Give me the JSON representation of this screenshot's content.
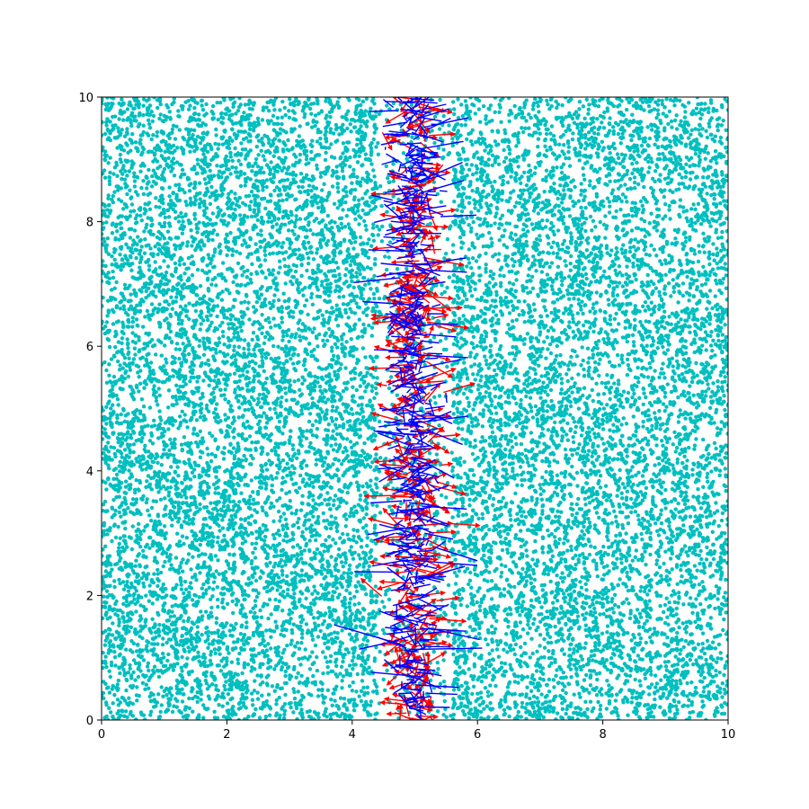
{
  "chart_data": {
    "type": "scatter",
    "title": "",
    "xlabel": "",
    "ylabel": "",
    "xlim": [
      0,
      10
    ],
    "ylim": [
      0,
      10
    ],
    "grid": false,
    "x_ticks": [
      "0",
      "2",
      "4",
      "6",
      "8",
      "10"
    ],
    "y_ticks": [
      "0",
      "2",
      "4",
      "6",
      "8",
      "10"
    ],
    "x_tick_values": [
      0,
      2,
      4,
      6,
      8,
      10
    ],
    "y_tick_values": [
      0,
      2,
      4,
      6,
      8,
      10
    ],
    "series": [
      {
        "type": "scatter",
        "color": "#00bfbf",
        "distribution": "approximately uniform random points covering x 0-10, y 0-10, sparser near x = 5",
        "point_count_estimate": 20000,
        "sample_points": [
          [
            0.3,
            9.0
          ],
          [
            1.2,
            8.4
          ],
          [
            2.5,
            9.6
          ],
          [
            3.1,
            7.2
          ],
          [
            0.8,
            6.5
          ],
          [
            1.9,
            5.3
          ],
          [
            2.7,
            4.1
          ],
          [
            3.6,
            3.2
          ],
          [
            0.5,
            2.4
          ],
          [
            1.4,
            1.1
          ],
          [
            2.2,
            0.6
          ],
          [
            3.3,
            1.8
          ],
          [
            6.4,
            9.3
          ],
          [
            7.2,
            8.1
          ],
          [
            8.5,
            9.0
          ],
          [
            9.6,
            7.6
          ],
          [
            6.8,
            6.2
          ],
          [
            7.9,
            5.4
          ],
          [
            8.8,
            4.3
          ],
          [
            9.4,
            3.1
          ],
          [
            6.2,
            2.6
          ],
          [
            7.5,
            1.7
          ],
          [
            8.3,
            0.8
          ],
          [
            9.1,
            2.0
          ]
        ]
      },
      {
        "type": "quiver",
        "color": "#ff0000",
        "distribution": "short arrows centered near x = 5, spanning y 0-10",
        "x_center": 5.0,
        "x_spread": 0.35,
        "y_range": [
          0,
          10
        ],
        "arrow_count_estimate": 400
      },
      {
        "type": "segments",
        "color": "#0000ff",
        "distribution": "line segments centered near x = 5, spanning y 0-10, spread wider than red arrows",
        "x_center": 5.0,
        "x_spread": 0.45,
        "y_range": [
          0,
          10
        ],
        "segment_count_estimate": 600
      }
    ]
  }
}
